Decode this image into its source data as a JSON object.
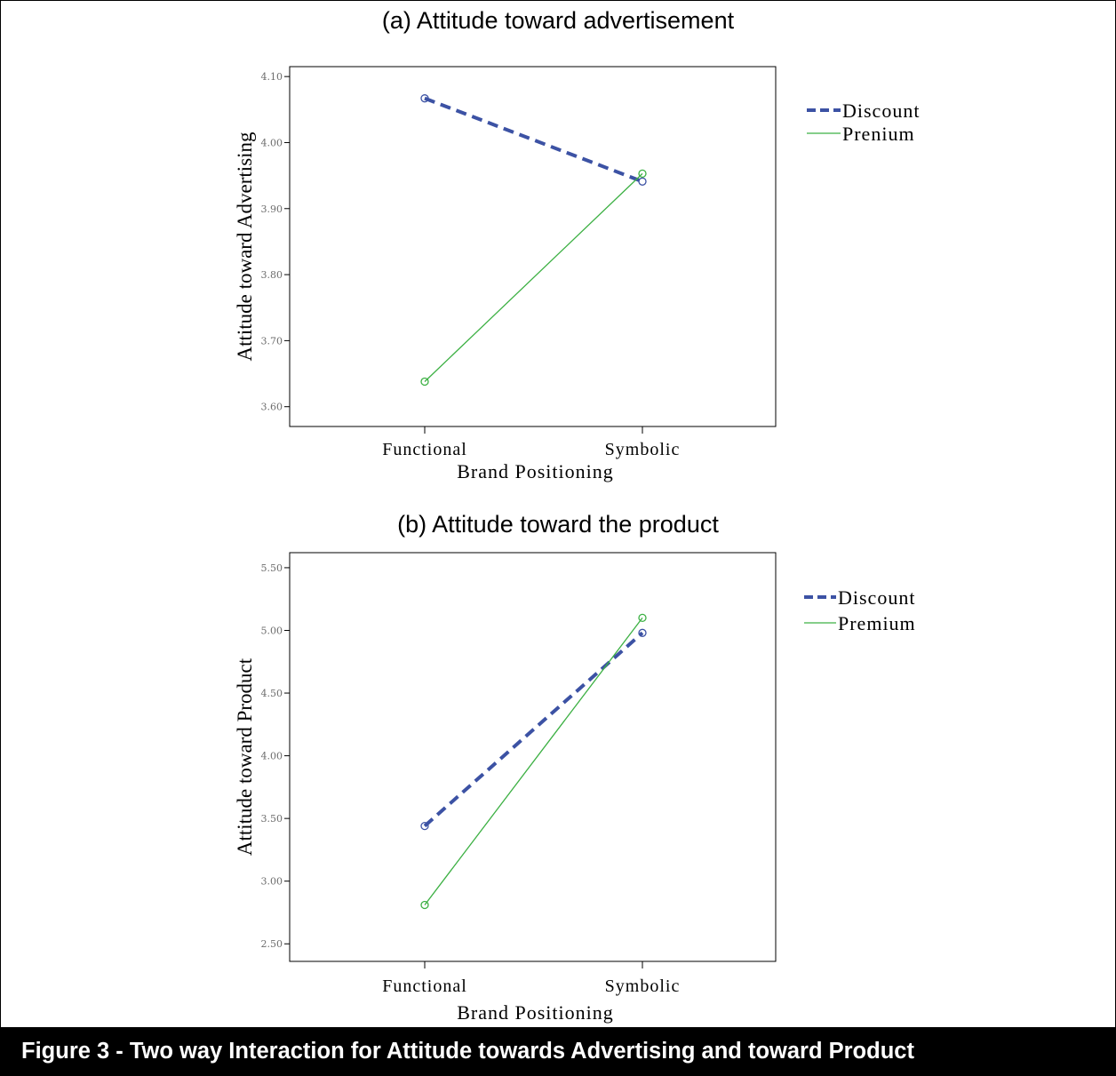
{
  "chart_data": [
    {
      "type": "line",
      "title": "(a)  Attitude toward advertisement",
      "xlabel": "Brand Positioning",
      "ylabel": "Attitude toward Advertising",
      "categories": [
        "Functional",
        "Symbolic"
      ],
      "ylim": [
        3.57,
        4.115
      ],
      "yticks": [
        "3.60",
        "3.70",
        "3.80",
        "3.90",
        "4.00",
        "4.10"
      ],
      "series": [
        {
          "name": "Discount",
          "values": [
            4.067,
            3.941
          ],
          "color": "#3c52a4",
          "style": "dashed"
        },
        {
          "name": "Prenium",
          "values": [
            3.638,
            3.953
          ],
          "color": "#3cb043",
          "style": "solid"
        }
      ],
      "legend": "right",
      "grid": false
    },
    {
      "type": "line",
      "title": "(b) Attitude toward the product",
      "xlabel": "Brand Positioning",
      "ylabel": "Attitude toward Product",
      "categories": [
        "Functional",
        "Symbolic"
      ],
      "ylim": [
        2.36,
        5.62
      ],
      "yticks": [
        "2.50",
        "3.00",
        "3.50",
        "4.00",
        "4.50",
        "5.00",
        "5.50"
      ],
      "series": [
        {
          "name": "Discount",
          "values": [
            3.44,
            4.98
          ],
          "color": "#3c52a4",
          "style": "dashed"
        },
        {
          "name": "Premium",
          "values": [
            2.81,
            5.1
          ],
          "color": "#3cb043",
          "style": "solid"
        }
      ],
      "legend": "right",
      "grid": false
    }
  ],
  "caption": "Figure 3 - Two way Interaction for Attitude towards Advertising and toward Product"
}
